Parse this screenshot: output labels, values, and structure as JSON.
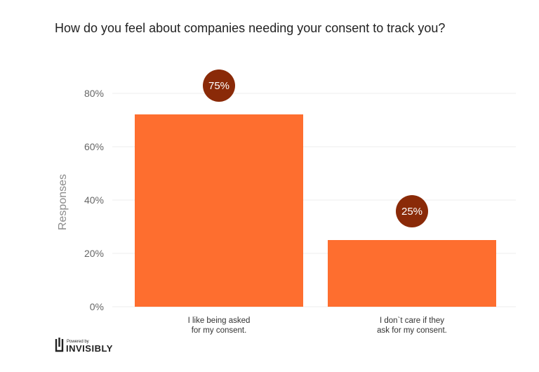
{
  "chart_data": {
    "type": "bar",
    "title": "How do you feel about companies needing your consent to track you?",
    "ylabel": "Responses",
    "xlabel": "",
    "categories": [
      [
        "I like being asked",
        "for my consent."
      ],
      [
        "I don`t care if they",
        "ask for my consent."
      ]
    ],
    "values": [
      75,
      25
    ],
    "data_labels": [
      "75%",
      "25%"
    ],
    "ylim": [
      0,
      80
    ],
    "yticks": [
      0,
      20,
      40,
      60,
      80
    ],
    "ytick_labels": [
      "0%",
      "20%",
      "40%",
      "60%",
      "80%"
    ],
    "grid": true
  },
  "colors": {
    "bar": "#fe6e2f",
    "label_bubble": "#8a2a08",
    "grid": "#ececec"
  },
  "branding": {
    "powered_by": "Powered by",
    "name": "INVISIBLY",
    "icon": "invisibly-logo-icon"
  }
}
